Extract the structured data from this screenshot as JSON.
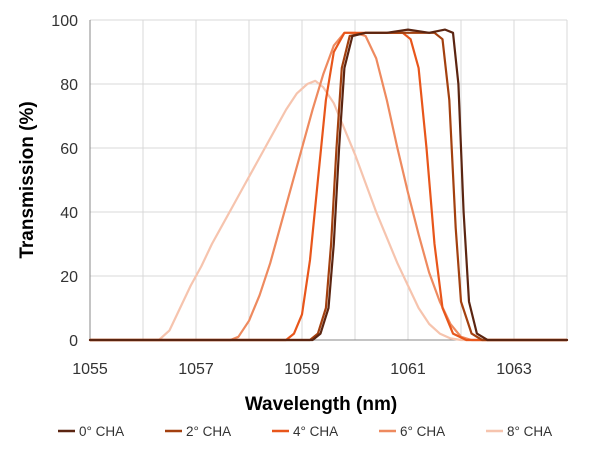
{
  "chart_data": {
    "type": "line",
    "title": "",
    "xlabel": "Wavelength (nm)",
    "ylabel": "Transmission (%)",
    "xlim": [
      1055,
      1064
    ],
    "ylim": [
      0,
      100
    ],
    "xticks": [
      1055,
      1057,
      1059,
      1061,
      1063
    ],
    "yticks": [
      0,
      20,
      40,
      60,
      80,
      100
    ],
    "grid": true,
    "legend_position": "bottom",
    "series": [
      {
        "name": "0° CHA",
        "color": "#5b2511",
        "x": [
          1055,
          1059.2,
          1059.35,
          1059.5,
          1059.6,
          1059.7,
          1059.8,
          1059.95,
          1060.2,
          1060.6,
          1061.0,
          1061.4,
          1061.7,
          1061.85,
          1061.95,
          1062.05,
          1062.15,
          1062.3,
          1062.5,
          1064
        ],
        "y": [
          0,
          0,
          2,
          10,
          30,
          60,
          85,
          95,
          96,
          96,
          97,
          96,
          97,
          96,
          80,
          40,
          12,
          2,
          0,
          0
        ]
      },
      {
        "name": "2° CHA",
        "color": "#a3400f",
        "x": [
          1055,
          1059.15,
          1059.3,
          1059.45,
          1059.55,
          1059.65,
          1059.75,
          1059.9,
          1060.2,
          1060.6,
          1061.0,
          1061.3,
          1061.5,
          1061.65,
          1061.78,
          1061.9,
          1062.0,
          1062.2,
          1062.4,
          1064
        ],
        "y": [
          0,
          0,
          2,
          10,
          30,
          60,
          85,
          95,
          96,
          96,
          96,
          96,
          96,
          94,
          75,
          35,
          12,
          2,
          0,
          0
        ]
      },
      {
        "name": "4° CHA",
        "color": "#e8561b",
        "x": [
          1055,
          1058.7,
          1058.85,
          1059.0,
          1059.15,
          1059.3,
          1059.45,
          1059.6,
          1059.8,
          1060.2,
          1060.6,
          1060.9,
          1061.05,
          1061.2,
          1061.35,
          1061.5,
          1061.65,
          1061.85,
          1062.1,
          1064
        ],
        "y": [
          0,
          0,
          2,
          8,
          25,
          50,
          75,
          90,
          96,
          96,
          96,
          96,
          94,
          85,
          60,
          30,
          10,
          2,
          0,
          0
        ]
      },
      {
        "name": "6° CHA",
        "color": "#ee8a5f",
        "x": [
          1055,
          1057.65,
          1057.8,
          1058.0,
          1058.2,
          1058.4,
          1058.6,
          1058.8,
          1059.0,
          1059.2,
          1059.4,
          1059.6,
          1059.8,
          1060.0,
          1060.2,
          1060.4,
          1060.6,
          1060.8,
          1061.0,
          1061.2,
          1061.4,
          1061.6,
          1061.8,
          1062.0,
          1062.2,
          1062.4,
          1064
        ],
        "y": [
          0,
          0,
          1,
          6,
          14,
          24,
          36,
          48,
          60,
          72,
          83,
          92,
          96,
          96,
          95,
          88,
          75,
          60,
          46,
          33,
          21,
          12,
          5,
          1,
          0,
          0,
          0
        ]
      },
      {
        "name": "8° CHA",
        "color": "#f6c4ae",
        "x": [
          1055,
          1056.3,
          1056.5,
          1056.7,
          1056.9,
          1057.1,
          1057.3,
          1057.5,
          1057.7,
          1057.9,
          1058.1,
          1058.3,
          1058.5,
          1058.7,
          1058.9,
          1059.1,
          1059.25,
          1059.4,
          1059.6,
          1059.8,
          1060.0,
          1060.2,
          1060.4,
          1060.6,
          1060.8,
          1061.0,
          1061.2,
          1061.4,
          1061.6,
          1061.8,
          1062.0,
          1062.2,
          1064
        ],
        "y": [
          0,
          0,
          3,
          10,
          17,
          23,
          30,
          36,
          42,
          48,
          54,
          60,
          66,
          72,
          77,
          80,
          81,
          79,
          74,
          66,
          58,
          49,
          40,
          32,
          24,
          17,
          10,
          5,
          2,
          0.5,
          0,
          0,
          0
        ]
      }
    ]
  }
}
